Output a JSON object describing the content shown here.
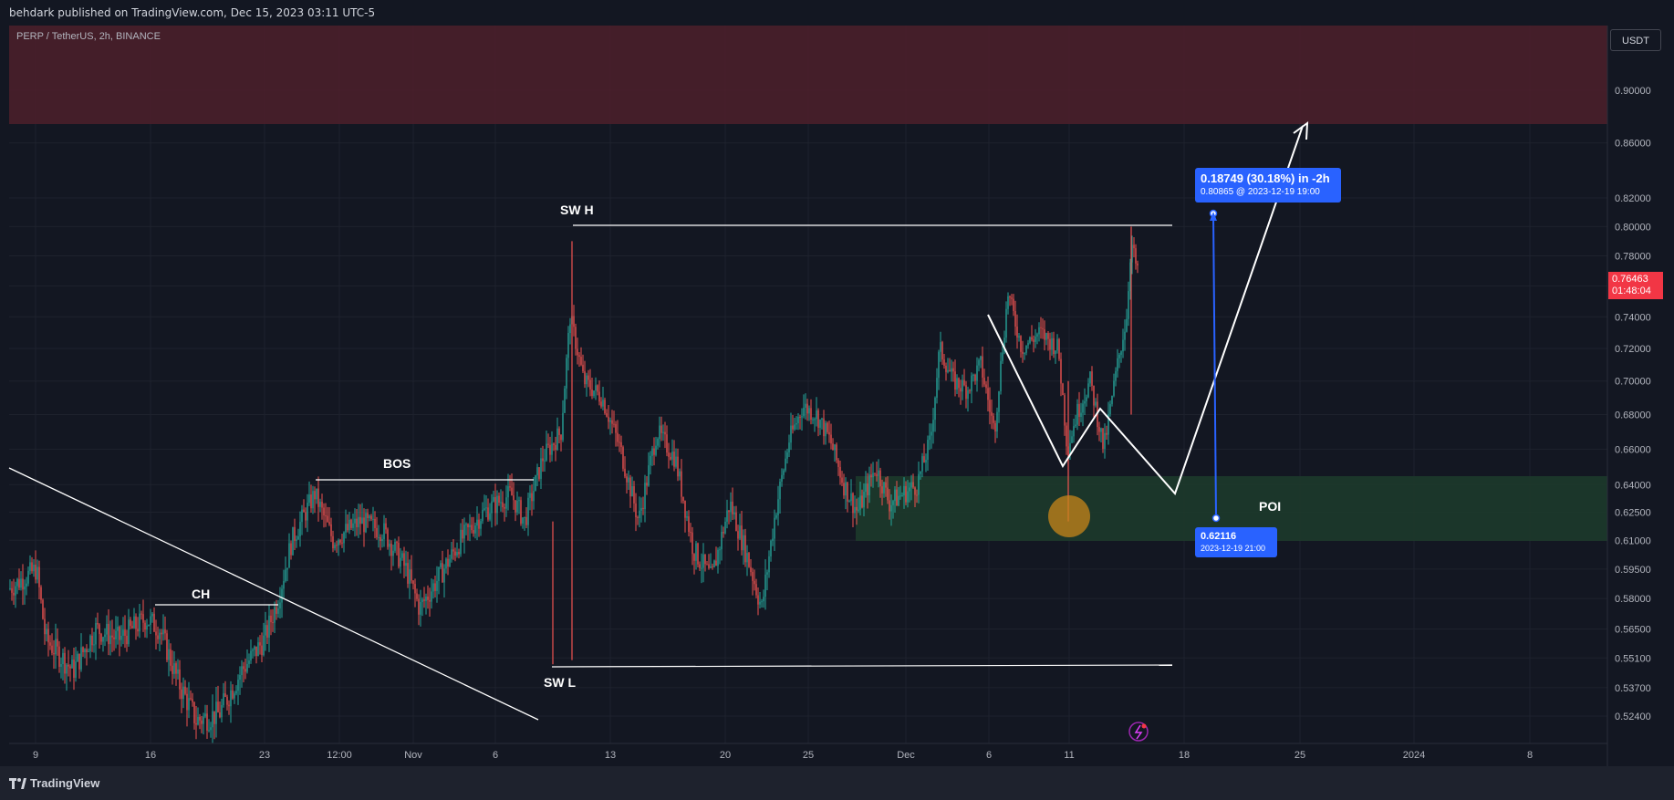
{
  "header": {
    "published_text": "behdark published on TradingView.com, Dec 15, 2023 03:11 UTC-5"
  },
  "symbol": {
    "title": "PERP / TetherUS, 2h, BINANCE"
  },
  "currency_button": {
    "label": "USDT"
  },
  "last_price": {
    "value": "0.76463",
    "countdown": "01:48:04",
    "color": "#f23645"
  },
  "colors": {
    "up": "#26a69a",
    "down": "#ef5350",
    "supply_zone": "#4a1f2a",
    "demand_zone": "#1d3a2b",
    "measure": "#2962ff",
    "poi_circle": "#c8861a"
  },
  "annotations": {
    "ch": "CH",
    "bos": "BOS",
    "sw_h": "SW H",
    "sw_l": "SW L",
    "poi": "POI"
  },
  "measure": {
    "top_line1": "0.18749 (30.18%) in -2h",
    "top_line2": "0.80865 @ 2023-12-19  19:00",
    "bottom_line1": "0.62116",
    "bottom_line2": "2023-12-19 21:00"
  },
  "footer": {
    "brand": "TradingView"
  },
  "chart_data": {
    "type": "candlestick",
    "title": "PERP / TetherUS, 2h, BINANCE",
    "y_axis": {
      "scale": "log",
      "ticks": [
        "0.90000",
        "0.86000",
        "0.82000",
        "0.80000",
        "0.78000",
        "0.76000",
        "0.74000",
        "0.72000",
        "0.70000",
        "0.68000",
        "0.66000",
        "0.64000",
        "0.62500",
        "0.61000",
        "0.59500",
        "0.58000",
        "0.56500",
        "0.55100",
        "0.53700",
        "0.52400"
      ]
    },
    "x_axis": {
      "ticks": [
        "9",
        "16",
        "23",
        "12:00",
        "Nov",
        "6",
        "13",
        "20",
        "25",
        "Dec",
        "6",
        "11",
        "18",
        "25",
        "2024",
        "8"
      ]
    },
    "swing_high": 0.8,
    "swing_low": 0.548,
    "bos_level": 0.641,
    "ch_level": 0.578,
    "supply_zone": [
      0.872,
      0.93
    ],
    "demand_zone_poi": [
      0.61,
      0.645
    ],
    "projection_target": 0.87
  }
}
